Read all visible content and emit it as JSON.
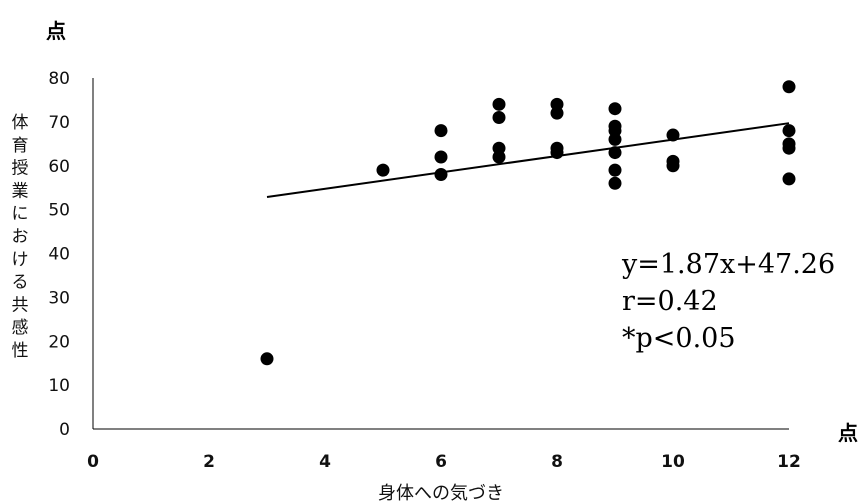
{
  "chart_data": {
    "type": "scatter",
    "title": "",
    "xlabel": "身体への気づき",
    "ylabel": "体育授業における共感性",
    "x_unit": "点",
    "y_unit": "点",
    "xlim": [
      0,
      12
    ],
    "ylim": [
      0,
      80
    ],
    "x_ticks": [
      0,
      2,
      4,
      6,
      8,
      10,
      12
    ],
    "y_ticks": [
      0,
      10,
      20,
      30,
      40,
      50,
      60,
      70,
      80
    ],
    "grid": false,
    "legend": "none",
    "points": [
      {
        "x": 3,
        "y": 16
      },
      {
        "x": 5,
        "y": 59
      },
      {
        "x": 6,
        "y": 68
      },
      {
        "x": 6,
        "y": 62
      },
      {
        "x": 6,
        "y": 58
      },
      {
        "x": 7,
        "y": 74
      },
      {
        "x": 7,
        "y": 71
      },
      {
        "x": 7,
        "y": 64
      },
      {
        "x": 7,
        "y": 62
      },
      {
        "x": 8,
        "y": 74
      },
      {
        "x": 8,
        "y": 72
      },
      {
        "x": 8,
        "y": 64
      },
      {
        "x": 8,
        "y": 63
      },
      {
        "x": 9,
        "y": 73
      },
      {
        "x": 9,
        "y": 69
      },
      {
        "x": 9,
        "y": 68
      },
      {
        "x": 9,
        "y": 66
      },
      {
        "x": 9,
        "y": 63
      },
      {
        "x": 9,
        "y": 59
      },
      {
        "x": 9,
        "y": 56
      },
      {
        "x": 10,
        "y": 67
      },
      {
        "x": 10,
        "y": 61
      },
      {
        "x": 10,
        "y": 60
      },
      {
        "x": 12,
        "y": 78
      },
      {
        "x": 12,
        "y": 68
      },
      {
        "x": 12,
        "y": 65
      },
      {
        "x": 12,
        "y": 64
      },
      {
        "x": 12,
        "y": 57
      }
    ],
    "trendline": {
      "slope": 1.87,
      "intercept": 47.26,
      "x_range": [
        3,
        12
      ]
    },
    "annotations": [
      "y=1.87x+47.26",
      "r=0.42",
      "*p<0.05"
    ],
    "marker_color": "#000000",
    "line_color": "#000000"
  }
}
